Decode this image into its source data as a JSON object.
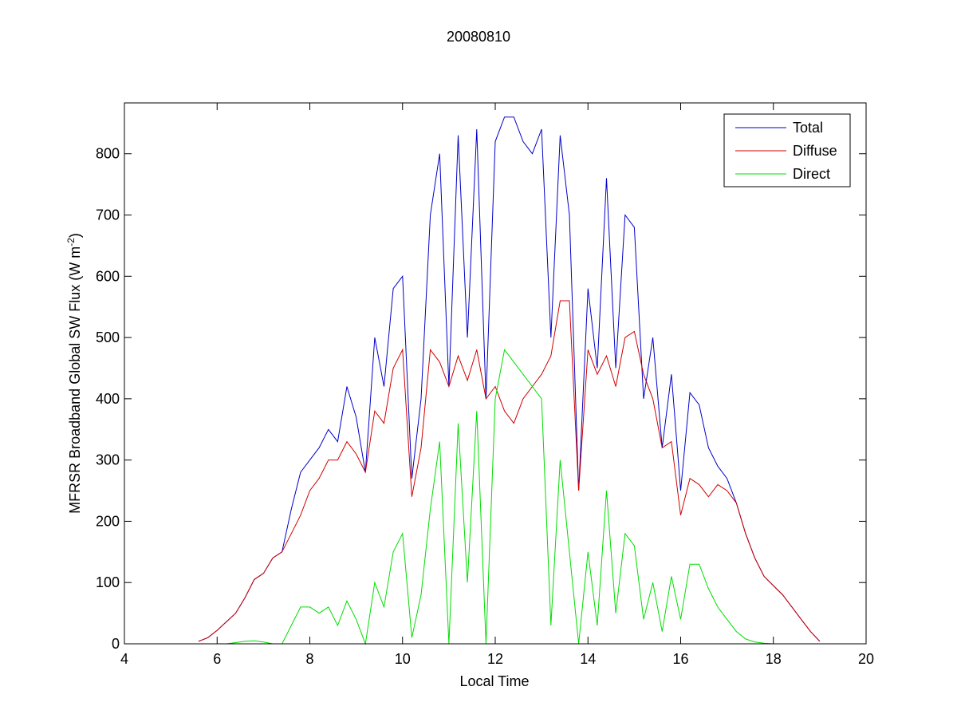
{
  "chart_data": {
    "type": "line",
    "title": "20080810",
    "xlabel": "Local Time",
    "ylabel": [
      "MFRSR Broadband Global SW Flux (W m",
      "-2",
      ")"
    ],
    "x": [
      5.6,
      5.8,
      6.0,
      6.2,
      6.4,
      6.6,
      6.8,
      7.0,
      7.2,
      7.4,
      7.6,
      7.8,
      8.0,
      8.2,
      8.4,
      8.6,
      8.8,
      9.0,
      9.2,
      9.4,
      9.6,
      9.8,
      10.0,
      10.2,
      10.4,
      10.6,
      10.8,
      11.0,
      11.2,
      11.4,
      11.6,
      11.8,
      12.0,
      12.2,
      12.4,
      12.6,
      12.8,
      13.0,
      13.2,
      13.4,
      13.6,
      13.8,
      14.0,
      14.2,
      14.4,
      14.6,
      14.8,
      15.0,
      15.2,
      15.4,
      15.6,
      15.8,
      16.0,
      16.2,
      16.4,
      16.6,
      16.8,
      17.0,
      17.2,
      17.4,
      17.6,
      17.8,
      18.0,
      18.2,
      18.4,
      18.6,
      18.8,
      19.0
    ],
    "series": [
      {
        "name": "Total",
        "color": "#0000c8",
        "values": [
          4,
          10,
          22,
          36,
          50,
          75,
          105,
          115,
          140,
          150,
          220,
          280,
          300,
          320,
          350,
          330,
          420,
          370,
          280,
          500,
          420,
          580,
          600,
          270,
          400,
          700,
          800,
          420,
          830,
          500,
          840,
          400,
          820,
          860,
          860,
          820,
          800,
          840,
          500,
          830,
          700,
          250,
          580,
          450,
          760,
          450,
          700,
          680,
          400,
          500,
          320,
          440,
          250,
          410,
          390,
          320,
          290,
          270,
          230,
          180,
          140,
          110,
          95,
          80,
          60,
          40,
          20,
          4
        ]
      },
      {
        "name": "Diffuse",
        "color": "#d00000",
        "values": [
          4,
          10,
          22,
          36,
          50,
          75,
          105,
          115,
          140,
          150,
          180,
          210,
          250,
          270,
          300,
          300,
          330,
          310,
          280,
          380,
          360,
          450,
          480,
          240,
          320,
          480,
          460,
          420,
          470,
          430,
          480,
          400,
          420,
          380,
          360,
          400,
          420,
          440,
          470,
          560,
          560,
          250,
          480,
          440,
          470,
          420,
          500,
          510,
          440,
          400,
          320,
          330,
          210,
          270,
          260,
          240,
          260,
          250,
          230,
          180,
          140,
          110,
          95,
          80,
          60,
          40,
          20,
          4
        ]
      },
      {
        "name": "Direct",
        "color": "#00dd00",
        "values": [
          0,
          0,
          0,
          0,
          2,
          4,
          5,
          3,
          0,
          0,
          30,
          60,
          60,
          50,
          60,
          30,
          70,
          40,
          0,
          100,
          60,
          150,
          180,
          10,
          80,
          220,
          330,
          0,
          360,
          100,
          380,
          0,
          400,
          480,
          460,
          440,
          420,
          400,
          30,
          300,
          150,
          0,
          150,
          30,
          250,
          50,
          180,
          160,
          40,
          100,
          20,
          110,
          40,
          130,
          130,
          90,
          60,
          40,
          20,
          8,
          3,
          1,
          0,
          0,
          0,
          0,
          0,
          0
        ]
      }
    ],
    "xlim": [
      4,
      20
    ],
    "xticks": [
      4,
      6,
      8,
      10,
      12,
      14,
      16,
      18,
      20
    ],
    "ylim": [
      0,
      883
    ],
    "yticks": [
      0,
      100,
      200,
      300,
      400,
      500,
      600,
      700,
      800
    ],
    "legend": "top-right"
  }
}
